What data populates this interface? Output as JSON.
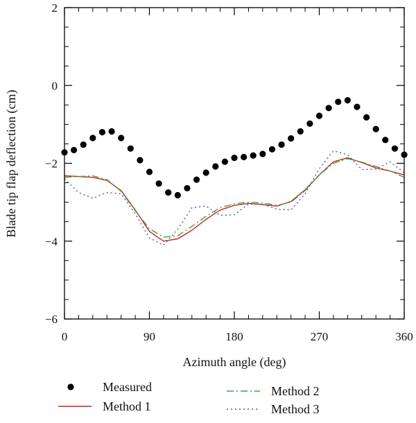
{
  "chart_data": {
    "type": "line",
    "xlabel": "Azimuth angle (deg)",
    "ylabel": "Blade tip flap deflection (cm)",
    "xlim": [
      0,
      360
    ],
    "ylim": [
      -6,
      2
    ],
    "x_ticks": [
      0,
      90,
      180,
      270,
      360
    ],
    "x_tick_labels": [
      "0",
      "90",
      "180",
      "270",
      "360"
    ],
    "x_minor_step": 15,
    "y_ticks": [
      -6,
      -4,
      -2,
      0,
      2
    ],
    "y_tick_labels": [
      "−6",
      "−4",
      "−2",
      "0",
      "2"
    ],
    "y_minor_step": 0.5,
    "grid": false,
    "legend_position": "bottom",
    "series": [
      {
        "name": "Measured",
        "style": "markers",
        "color": "#000000",
        "x": [
          0,
          10,
          20,
          30,
          40,
          50,
          60,
          70,
          80,
          90,
          100,
          110,
          120,
          130,
          140,
          150,
          160,
          170,
          180,
          190,
          200,
          210,
          220,
          230,
          240,
          250,
          260,
          270,
          280,
          290,
          300,
          310,
          320,
          330,
          340,
          350,
          360
        ],
        "y": [
          -1.72,
          -1.66,
          -1.52,
          -1.35,
          -1.2,
          -1.18,
          -1.35,
          -1.62,
          -1.92,
          -2.22,
          -2.52,
          -2.75,
          -2.82,
          -2.64,
          -2.42,
          -2.24,
          -2.08,
          -1.96,
          -1.86,
          -1.84,
          -1.8,
          -1.76,
          -1.64,
          -1.52,
          -1.36,
          -1.18,
          -0.98,
          -0.78,
          -0.58,
          -0.42,
          -0.38,
          -0.55,
          -0.82,
          -1.12,
          -1.4,
          -1.62,
          -1.78
        ]
      },
      {
        "name": "Method 1",
        "style": "solid",
        "color": "#cc2222",
        "x": [
          0,
          15,
          30,
          45,
          60,
          75,
          90,
          105,
          120,
          135,
          150,
          165,
          180,
          195,
          210,
          225,
          240,
          255,
          270,
          285,
          300,
          315,
          330,
          345,
          360
        ],
        "y": [
          -2.32,
          -2.34,
          -2.36,
          -2.44,
          -2.7,
          -3.2,
          -3.75,
          -4.0,
          -3.94,
          -3.72,
          -3.44,
          -3.2,
          -3.08,
          -3.03,
          -3.06,
          -3.1,
          -2.98,
          -2.68,
          -2.3,
          -1.96,
          -1.86,
          -1.98,
          -2.12,
          -2.2,
          -2.3
        ]
      },
      {
        "name": "Method 2",
        "style": "dashdot",
        "color": "#33aa33",
        "x": [
          0,
          15,
          30,
          45,
          60,
          75,
          90,
          105,
          120,
          135,
          150,
          165,
          180,
          195,
          210,
          225,
          240,
          255,
          270,
          285,
          300,
          315,
          330,
          345,
          360
        ],
        "y": [
          -2.36,
          -2.34,
          -2.32,
          -2.42,
          -2.72,
          -3.22,
          -3.68,
          -3.9,
          -3.86,
          -3.62,
          -3.36,
          -3.14,
          -3.04,
          -3.0,
          -3.02,
          -3.08,
          -3.0,
          -2.7,
          -2.3,
          -2.0,
          -1.88,
          -1.97,
          -2.08,
          -2.2,
          -2.36
        ]
      },
      {
        "name": "Method 3",
        "style": "dotted",
        "color": "#4455cc",
        "x": [
          0,
          15,
          30,
          45,
          60,
          75,
          90,
          105,
          120,
          135,
          150,
          165,
          180,
          195,
          210,
          225,
          240,
          255,
          270,
          285,
          300,
          315,
          330,
          345,
          360
        ],
        "y": [
          -2.4,
          -2.75,
          -2.9,
          -2.75,
          -2.78,
          -3.3,
          -3.92,
          -4.1,
          -3.7,
          -3.14,
          -3.1,
          -3.34,
          -3.32,
          -3.05,
          -3.05,
          -3.18,
          -3.2,
          -2.78,
          -2.14,
          -1.68,
          -1.78,
          -2.16,
          -2.15,
          -1.96,
          -2.24
        ]
      }
    ]
  }
}
